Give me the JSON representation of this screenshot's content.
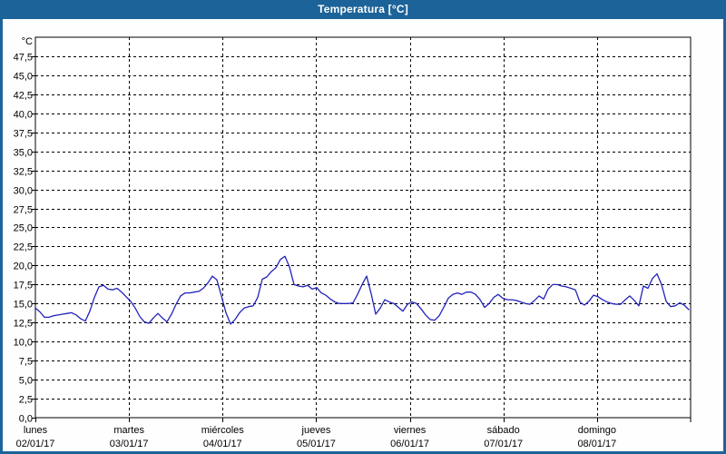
{
  "window": {
    "title": "Temperatura [°C]",
    "title_bar_color": "#1c6399",
    "border_color": "#1c6399",
    "background_color": "#fefefe"
  },
  "chart_data": {
    "type": "line",
    "title": "Temperatura [°C]",
    "grid": true,
    "legend": "none",
    "y_axis": {
      "unit_label": "°C",
      "min": 0,
      "max": 50,
      "tick_step": 2.5,
      "tick_labels_top_to_bottom": [
        "47,5",
        "45,0",
        "42,5",
        "40,0",
        "37,5",
        "35,0",
        "32,5",
        "30,0",
        "27,5",
        "25,0",
        "22,5",
        "20,0",
        "17,5",
        "15,0",
        "12,5",
        "10,0",
        "7,5",
        "5,0",
        "2,5",
        "0,0"
      ]
    },
    "x_axis": {
      "categories": [
        {
          "weekday": "lunes",
          "date": "02/01/17"
        },
        {
          "weekday": "martes",
          "date": "03/01/17"
        },
        {
          "weekday": "miércoles",
          "date": "04/01/17"
        },
        {
          "weekday": "jueves",
          "date": "05/01/17"
        },
        {
          "weekday": "viernes",
          "date": "06/01/17"
        },
        {
          "weekday": "sábado",
          "date": "07/01/17"
        },
        {
          "weekday": "domingo",
          "date": "08/01/17"
        }
      ]
    },
    "series": [
      {
        "name": "Temperatura",
        "color": "#2222bb",
        "sampling": "uniformly spaced across the 7 days",
        "values": [
          14.4,
          13.9,
          13.2,
          13.2,
          13.4,
          13.5,
          13.6,
          13.7,
          13.8,
          13.5,
          13.0,
          12.7,
          14.0,
          15.8,
          17.2,
          17.4,
          16.9,
          16.8,
          17.0,
          16.5,
          15.9,
          15.3,
          14.4,
          13.3,
          12.6,
          12.4,
          13.1,
          13.7,
          13.1,
          12.6,
          13.6,
          14.9,
          16.0,
          16.4,
          16.4,
          16.5,
          16.6,
          17.0,
          17.7,
          18.6,
          18.1,
          16.0,
          13.8,
          12.3,
          12.9,
          13.8,
          14.4,
          14.6,
          14.7,
          15.8,
          18.2,
          18.5,
          19.2,
          19.7,
          20.8,
          21.2,
          19.8,
          17.5,
          17.3,
          17.2,
          17.4,
          16.9,
          17.1,
          16.4,
          16.1,
          15.6,
          15.2,
          15.0,
          15.0,
          15.0,
          15.1,
          16.2,
          17.5,
          18.6,
          16.3,
          13.6,
          14.4,
          15.5,
          15.2,
          15.0,
          14.5,
          14.0,
          14.9,
          15.2,
          15.0,
          14.3,
          13.5,
          12.9,
          12.8,
          13.4,
          14.5,
          15.7,
          16.2,
          16.4,
          16.2,
          16.5,
          16.5,
          16.2,
          15.5,
          14.5,
          15.0,
          15.8,
          16.2,
          15.7,
          15.5,
          15.5,
          15.4,
          15.2,
          15.0,
          14.9,
          15.4,
          16.0,
          15.6,
          16.9,
          17.5,
          17.5,
          17.3,
          17.2,
          17.0,
          16.8,
          15.2,
          14.8,
          15.3,
          16.1,
          15.9,
          15.5,
          15.2,
          15.0,
          14.9,
          14.9,
          15.5,
          16.0,
          15.4,
          14.7,
          17.3,
          17.0,
          18.3,
          18.9,
          17.5,
          15.3,
          14.6,
          14.7,
          15.1,
          14.8,
          14.2
        ]
      }
    ]
  }
}
